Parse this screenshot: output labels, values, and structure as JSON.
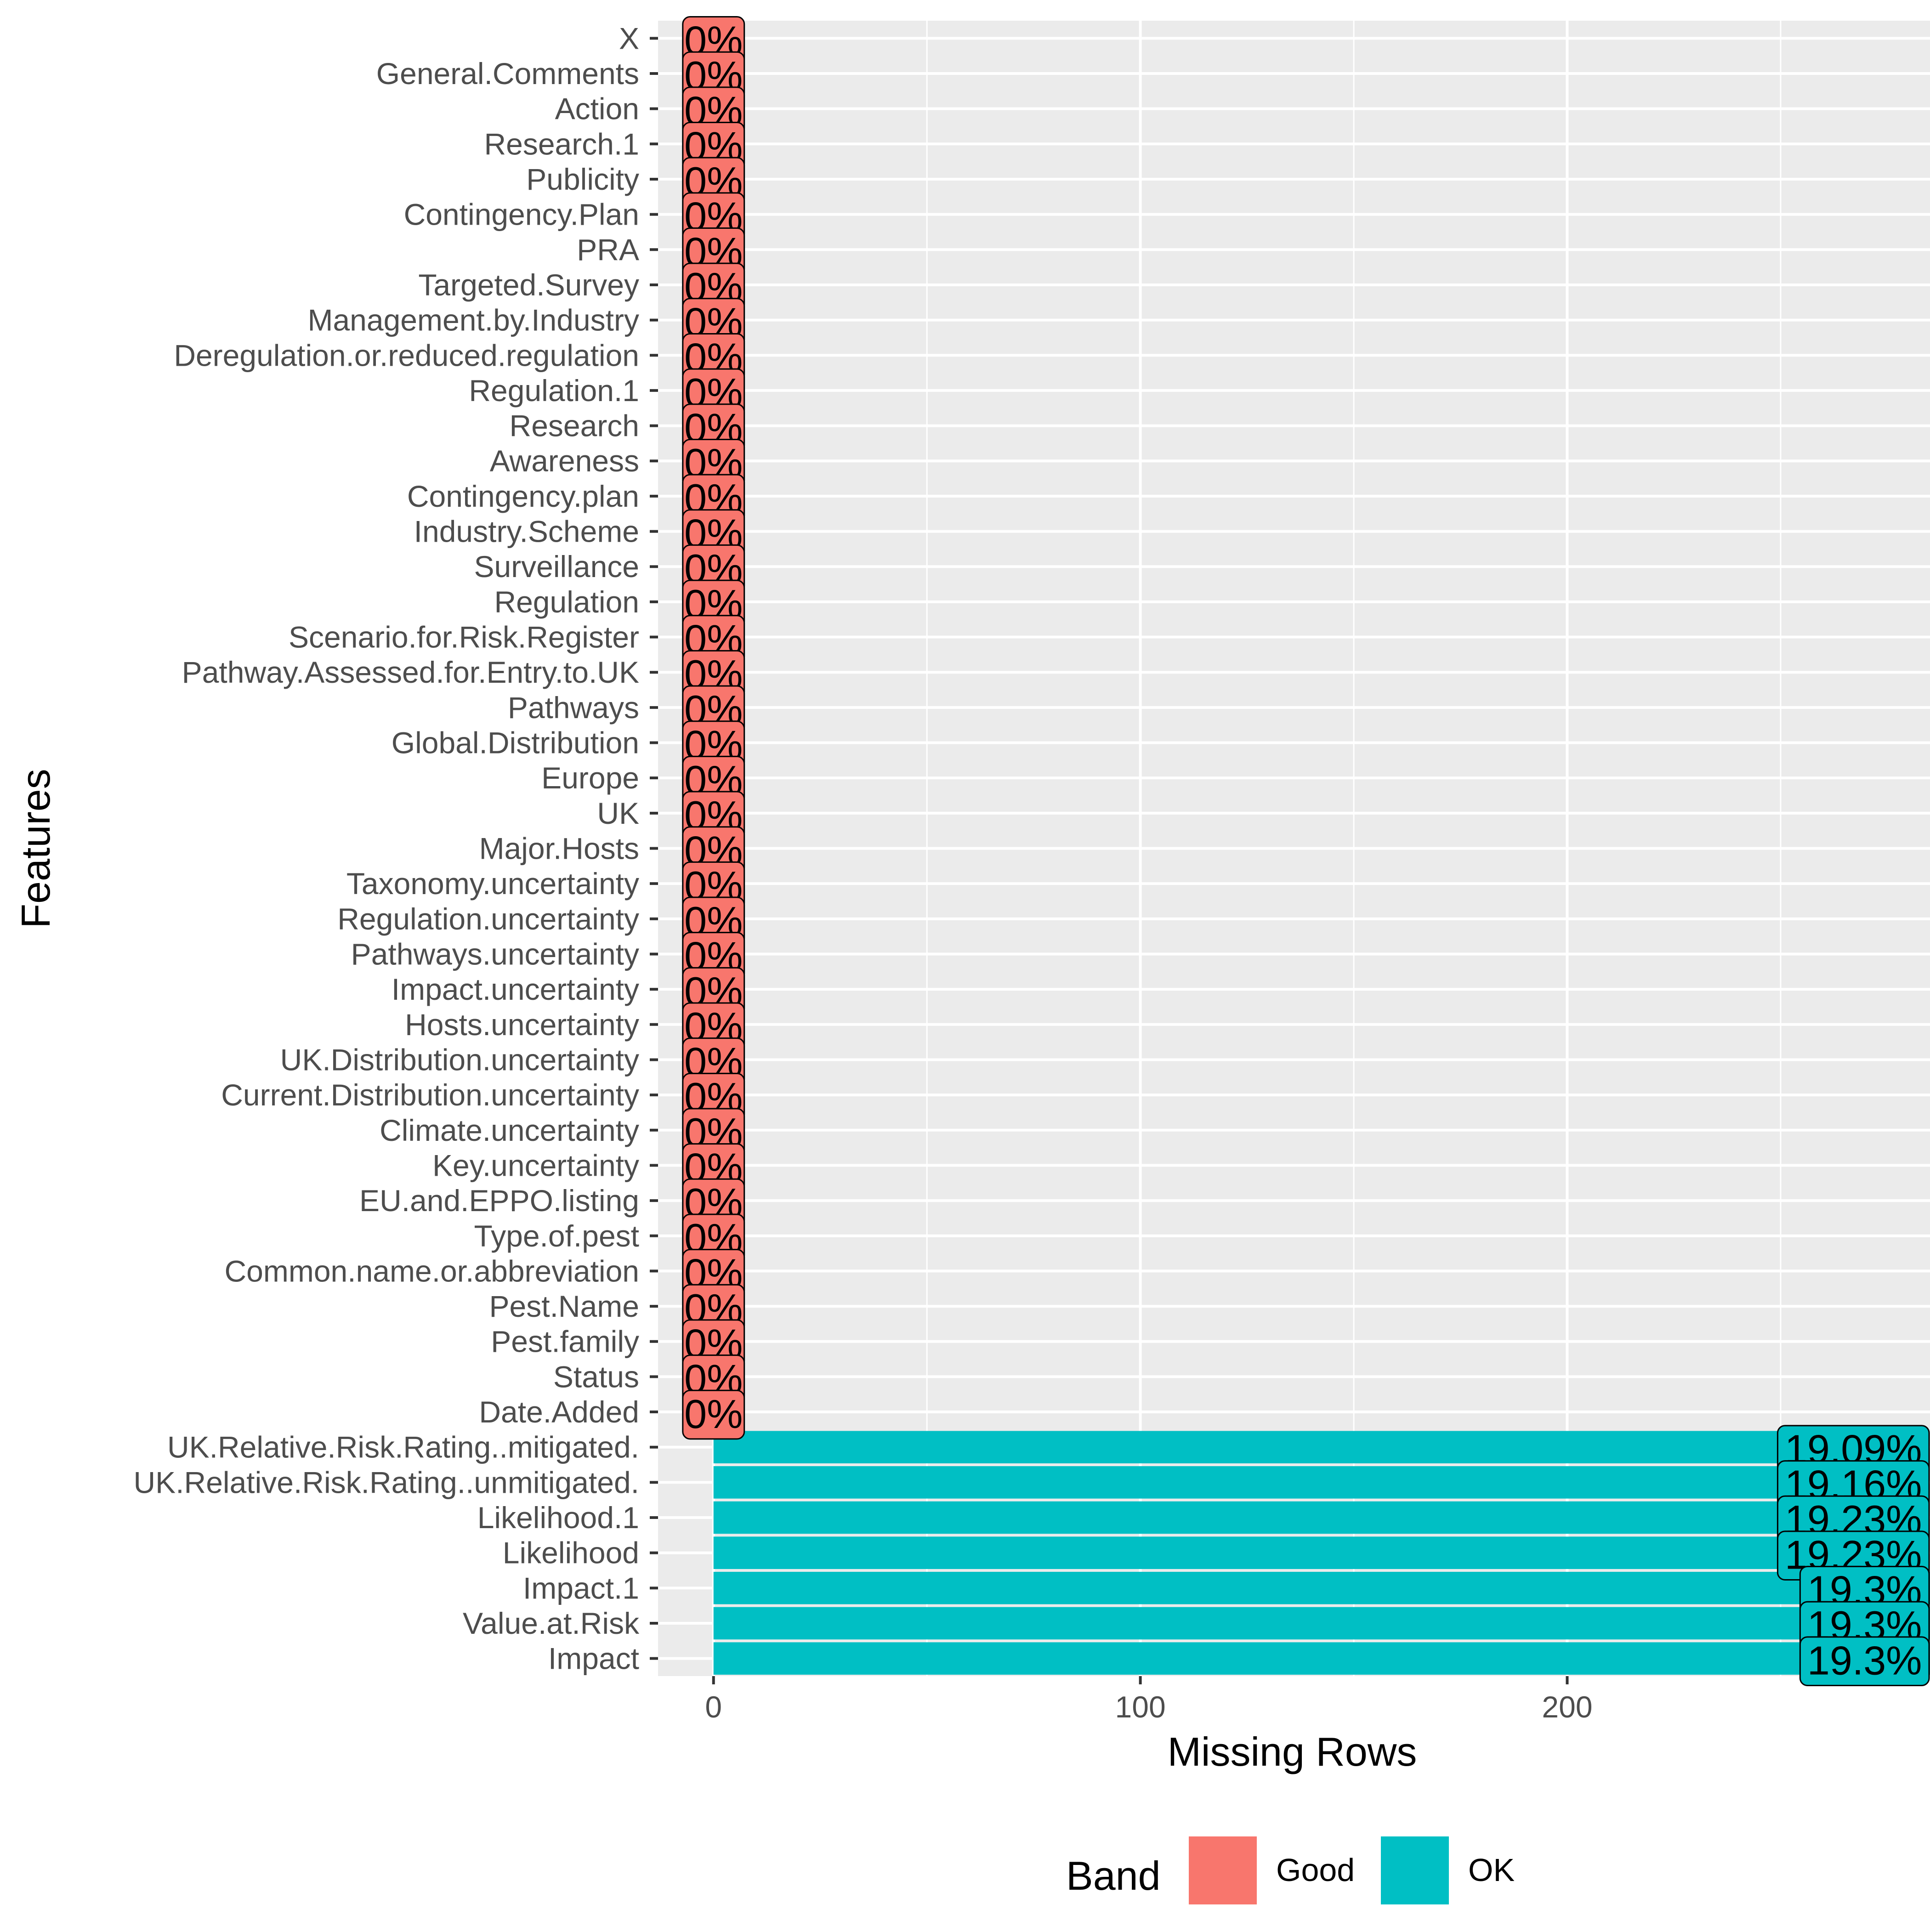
{
  "chart_data": {
    "type": "bar",
    "orientation": "horizontal",
    "xlabel": "Missing Rows",
    "ylabel": "Features",
    "xlim": [
      -13,
      285
    ],
    "xticks": [
      0,
      100,
      200
    ],
    "grid": true,
    "legend_position": "bottom",
    "legend": {
      "title": "Band",
      "entries": [
        {
          "label": "Good",
          "color": "#F8766D"
        },
        {
          "label": "OK",
          "color": "#00BFC4"
        }
      ]
    },
    "bars": [
      {
        "category": "X",
        "value": 0,
        "label": "0%",
        "band": "Good"
      },
      {
        "category": "General.Comments",
        "value": 0,
        "label": "0%",
        "band": "Good"
      },
      {
        "category": "Action",
        "value": 0,
        "label": "0%",
        "band": "Good"
      },
      {
        "category": "Research.1",
        "value": 0,
        "label": "0%",
        "band": "Good"
      },
      {
        "category": "Publicity",
        "value": 0,
        "label": "0%",
        "band": "Good"
      },
      {
        "category": "Contingency.Plan",
        "value": 0,
        "label": "0%",
        "band": "Good"
      },
      {
        "category": "PRA",
        "value": 0,
        "label": "0%",
        "band": "Good"
      },
      {
        "category": "Targeted.Survey",
        "value": 0,
        "label": "0%",
        "band": "Good"
      },
      {
        "category": "Management.by.Industry",
        "value": 0,
        "label": "0%",
        "band": "Good"
      },
      {
        "category": "Deregulation.or.reduced.regulation",
        "value": 0,
        "label": "0%",
        "band": "Good"
      },
      {
        "category": "Regulation.1",
        "value": 0,
        "label": "0%",
        "band": "Good"
      },
      {
        "category": "Research",
        "value": 0,
        "label": "0%",
        "band": "Good"
      },
      {
        "category": "Awareness",
        "value": 0,
        "label": "0%",
        "band": "Good"
      },
      {
        "category": "Contingency.plan",
        "value": 0,
        "label": "0%",
        "band": "Good"
      },
      {
        "category": "Industry.Scheme",
        "value": 0,
        "label": "0%",
        "band": "Good"
      },
      {
        "category": "Surveillance",
        "value": 0,
        "label": "0%",
        "band": "Good"
      },
      {
        "category": "Regulation",
        "value": 0,
        "label": "0%",
        "band": "Good"
      },
      {
        "category": "Scenario.for.Risk.Register",
        "value": 0,
        "label": "0%",
        "band": "Good"
      },
      {
        "category": "Pathway.Assessed.for.Entry.to.UK",
        "value": 0,
        "label": "0%",
        "band": "Good"
      },
      {
        "category": "Pathways",
        "value": 0,
        "label": "0%",
        "band": "Good"
      },
      {
        "category": "Global.Distribution",
        "value": 0,
        "label": "0%",
        "band": "Good"
      },
      {
        "category": "Europe",
        "value": 0,
        "label": "0%",
        "band": "Good"
      },
      {
        "category": "UK",
        "value": 0,
        "label": "0%",
        "band": "Good"
      },
      {
        "category": "Major.Hosts",
        "value": 0,
        "label": "0%",
        "band": "Good"
      },
      {
        "category": "Taxonomy.uncertainty",
        "value": 0,
        "label": "0%",
        "band": "Good"
      },
      {
        "category": "Regulation.uncertainty",
        "value": 0,
        "label": "0%",
        "band": "Good"
      },
      {
        "category": "Pathways.uncertainty",
        "value": 0,
        "label": "0%",
        "band": "Good"
      },
      {
        "category": "Impact.uncertainty",
        "value": 0,
        "label": "0%",
        "band": "Good"
      },
      {
        "category": "Hosts.uncertainty",
        "value": 0,
        "label": "0%",
        "band": "Good"
      },
      {
        "category": "UK.Distribution.uncertainty",
        "value": 0,
        "label": "0%",
        "band": "Good"
      },
      {
        "category": "Current.Distribution.uncertainty",
        "value": 0,
        "label": "0%",
        "band": "Good"
      },
      {
        "category": "Climate.uncertainty",
        "value": 0,
        "label": "0%",
        "band": "Good"
      },
      {
        "category": "Key.uncertainty",
        "value": 0,
        "label": "0%",
        "band": "Good"
      },
      {
        "category": "EU.and.EPPO.listing",
        "value": 0,
        "label": "0%",
        "band": "Good"
      },
      {
        "category": "Type.of.pest",
        "value": 0,
        "label": "0%",
        "band": "Good"
      },
      {
        "category": "Common.name.or.abbreviation",
        "value": 0,
        "label": "0%",
        "band": "Good"
      },
      {
        "category": "Pest.Name",
        "value": 0,
        "label": "0%",
        "band": "Good"
      },
      {
        "category": "Pest.family",
        "value": 0,
        "label": "0%",
        "band": "Good"
      },
      {
        "category": "Status",
        "value": 0,
        "label": "0%",
        "band": "Good"
      },
      {
        "category": "Date.Added",
        "value": 0,
        "label": "0%",
        "band": "Good"
      },
      {
        "category": "UK.Relative.Risk.Rating..mitigated.",
        "value": 282,
        "label": "19.09%",
        "band": "OK"
      },
      {
        "category": "UK.Relative.Risk.Rating..unmitigated.",
        "value": 283,
        "label": "19.16%",
        "band": "OK"
      },
      {
        "category": "Likelihood.1",
        "value": 284,
        "label": "19.23%",
        "band": "OK"
      },
      {
        "category": "Likelihood",
        "value": 284,
        "label": "19.23%",
        "band": "OK"
      },
      {
        "category": "Impact.1",
        "value": 285,
        "label": "19.3%",
        "band": "OK"
      },
      {
        "category": "Value.at.Risk",
        "value": 285,
        "label": "19.3%",
        "band": "OK"
      },
      {
        "category": "Impact",
        "value": 285,
        "label": "19.3%",
        "band": "OK"
      }
    ]
  }
}
